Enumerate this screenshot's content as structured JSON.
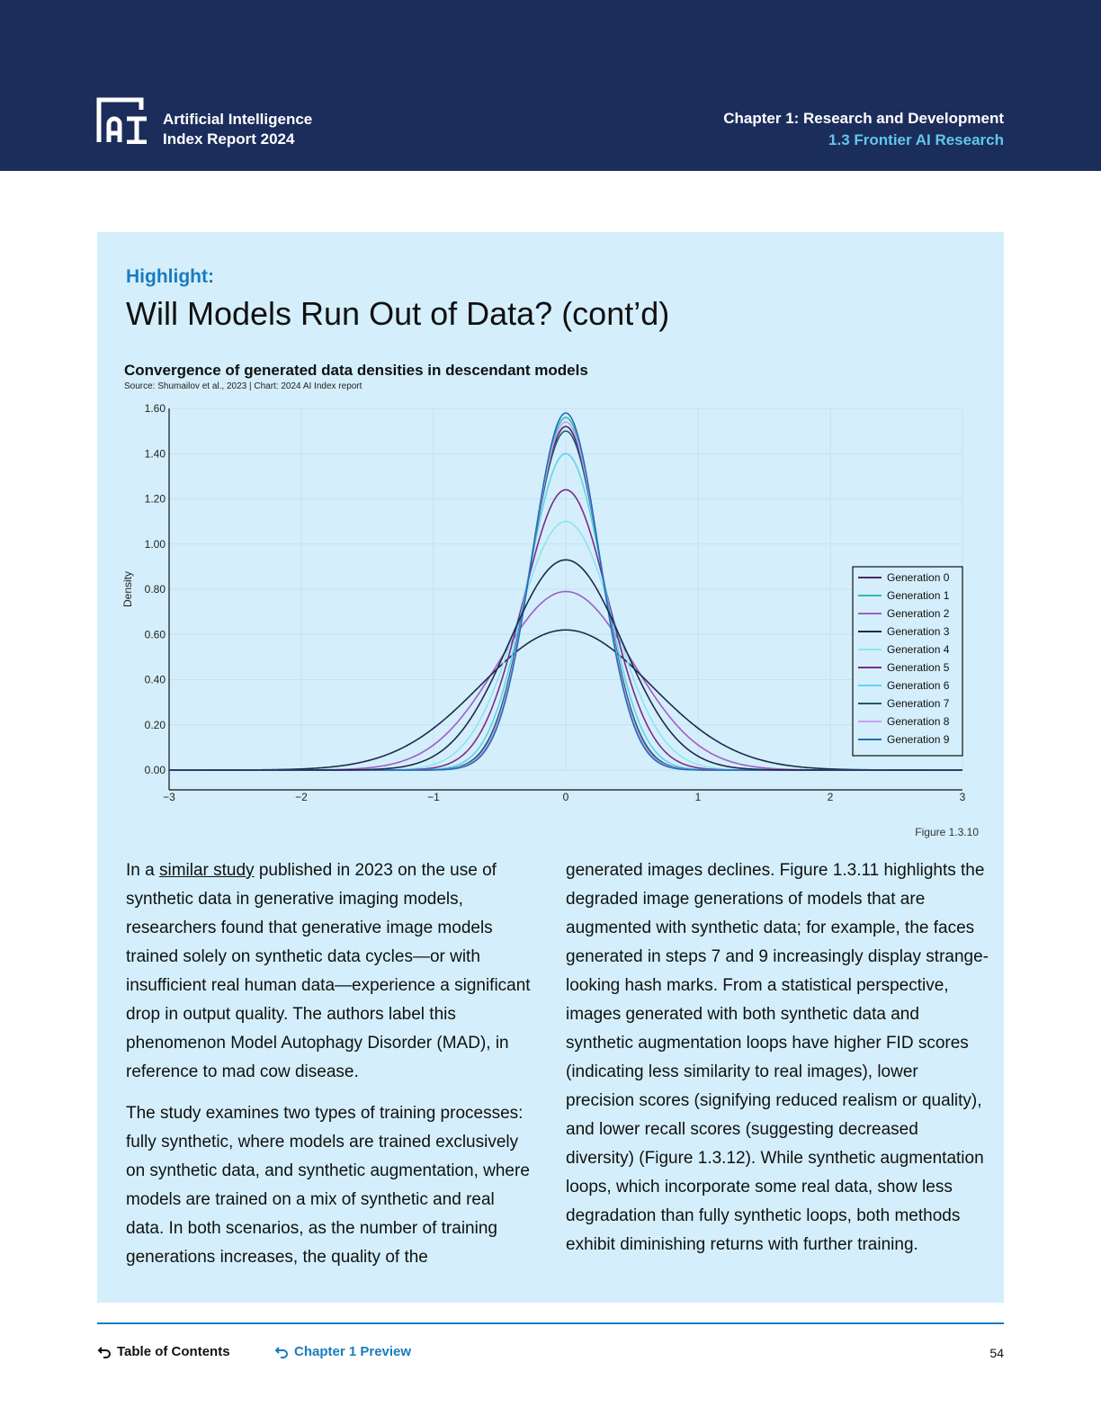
{
  "header": {
    "brand_line1": "Artificial Intelligence",
    "brand_line2": "Index Report 2024",
    "chapter": "Chapter 1: Research and Development",
    "section": "1.3 Frontier AI Research"
  },
  "highlight": {
    "kicker": "Highlight:",
    "title": "Will Models Run Out of Data? (cont’d)"
  },
  "chart_data": {
    "type": "line",
    "title": "Convergence of generated data densities in descendant models",
    "source": "Source: Shumailov et al., 2023 | Chart: 2024 AI Index report",
    "ylabel": "Density",
    "xlabel": "",
    "xlim": [
      -3,
      3
    ],
    "ylim": [
      0,
      1.6
    ],
    "x_ticks": [
      "−3",
      "−2",
      "−1",
      "0",
      "1",
      "2",
      "3"
    ],
    "y_ticks": [
      "0.00",
      "0.20",
      "0.40",
      "0.60",
      "0.80",
      "1.00",
      "1.20",
      "1.40",
      "1.60"
    ],
    "legend_position": "right",
    "grid": true,
    "series": [
      {
        "name": "Generation 0",
        "color": "#4a2a63",
        "mean": 0,
        "peak": 1.52
      },
      {
        "name": "Generation 1",
        "color": "#3cb8b0",
        "mean": 0,
        "peak": 1.56
      },
      {
        "name": "Generation 2",
        "color": "#a05cc7",
        "mean": 0,
        "peak": 0.79
      },
      {
        "name": "Generation 3",
        "color": "#1c2b4a",
        "mean": 0,
        "peak": 0.62
      },
      {
        "name": "Generation 4",
        "color": "#8fe3f0",
        "mean": 0,
        "peak": 1.1
      },
      {
        "name": "Generation 5",
        "color": "#7a2c8a",
        "mean": 0,
        "peak": 1.24
      },
      {
        "name": "Generation 6",
        "color": "#5fd3ee",
        "mean": 0,
        "peak": 1.4
      },
      {
        "name": "Generation 7",
        "color": "#1f5a6a",
        "mean": 0,
        "peak": 1.5
      },
      {
        "name": "Generation 8",
        "color": "#c79ff0",
        "mean": 0,
        "peak": 1.54
      },
      {
        "name": "Generation 9",
        "color": "#1f6fb8",
        "mean": 0,
        "peak": 1.58
      },
      {
        "name": "",
        "color": "#1c2b4a",
        "mean": 0,
        "peak": 0.93
      }
    ],
    "figure_label": "Figure 1.3.10"
  },
  "body": {
    "left_p1_pre": "In a ",
    "left_p1_link": "similar study",
    "left_p1_post": " published in 2023 on the use of synthetic data in generative imaging models, researchers found that generative image models trained solely on synthetic data cycles—or with insufficient real human data—experience a significant drop in output quality. The authors label this phenomenon Model Autophagy Disorder (MAD), in reference to mad cow disease.",
    "left_p2": "The study examines two types of training processes: fully synthetic, where models are trained exclusively on synthetic data, and synthetic augmentation, where models are trained on a mix of synthetic and real data. In both scenarios, as the number of training generations increases, the quality of the",
    "right_p1": "generated images declines. Figure 1.3.11 highlights the degraded image generations of models that are augmented with synthetic data; for example, the faces generated in steps 7 and 9 increasingly display strange-looking hash marks. From a statistical perspective, images generated with both synthetic data and synthetic augmentation loops have higher FID scores (indicating less similarity to real images), lower precision scores (signifying reduced realism or quality), and lower recall scores (suggesting decreased diversity) (Figure 1.3.12). While synthetic augmentation loops, which incorporate some real data, show less degradation than fully synthetic loops, both methods exhibit diminishing returns with further training."
  },
  "footer": {
    "toc": "Table of Contents",
    "chapter_preview": "Chapter 1 Preview",
    "page": "54"
  },
  "colors": {
    "header_bg": "#1b2d5b",
    "panel_bg": "#d4effb",
    "accent": "#1a7bbf",
    "section_accent": "#62c6ec"
  }
}
